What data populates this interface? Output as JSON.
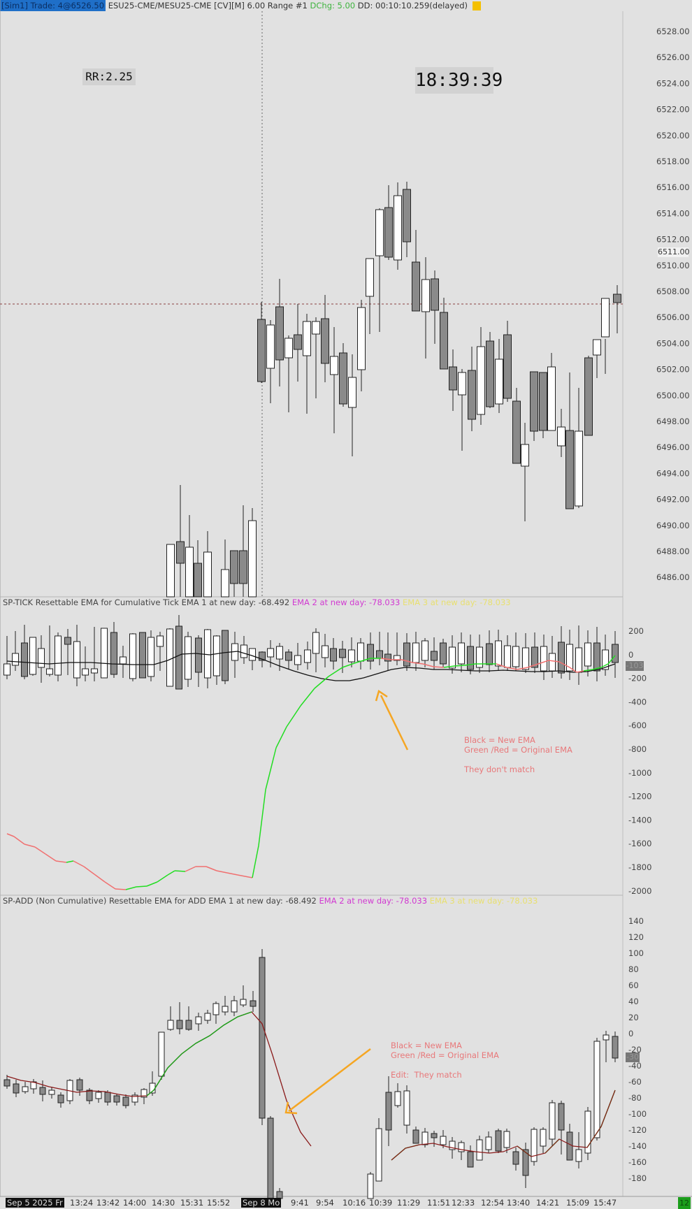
{
  "topbar": {
    "sim": "[Sim1] Trade: 4@6526.50",
    "instrument": "ESU25-CME/MESU25-CME [CV][M] 6.00 Range #1",
    "dchg": "DChg: 5.00",
    "dd": "DD: 00:10:10.259(delayed)"
  },
  "rr_box": "RR:2.25",
  "clock": "18:39:39",
  "price_axis": [
    "6528.00",
    "6526.00",
    "6524.00",
    "6522.00",
    "6520.00",
    "6518.00",
    "6516.00",
    "6514.00",
    "6512.00",
    "6510.00",
    "6508.00",
    "6506.00",
    "6504.00",
    "6502.00",
    "6500.00",
    "6498.00",
    "6496.00",
    "6494.00",
    "6492.00",
    "6490.00",
    "6488.00",
    "6486.00"
  ],
  "price_badge": "6511.00",
  "tick_panel": {
    "label": "SP-TICK  Resettable EMA for Cumulative Tick  EMA 1 at new day: -68.492",
    "ema2": "EMA 2 at new day: -78.033",
    "ema3": "EMA 3 at new day: -78.033",
    "axis": [
      "200",
      "0",
      "-200",
      "-400",
      "-600",
      "-800",
      "-1000",
      "-1200",
      "-1400",
      "-1600",
      "-1800",
      "-2000"
    ],
    "badge": "-103",
    "note": "Black = New EMA\nGreen /Red = Original EMA\n\nThey don't match"
  },
  "add_panel": {
    "label": "SP-ADD (Non Cumulative)  Resettable EMA for ADD   EMA 1 at new day: -68.492",
    "ema2": "EMA 2 at new day: -78.033",
    "ema3": "EMA 3 at new day: -78.033",
    "axis": [
      "140",
      "120",
      "100",
      "80",
      "60",
      "40",
      "20",
      "0",
      "-20",
      "-40",
      "-60",
      "-80",
      "-100",
      "-120",
      "-140",
      "-160",
      "-180"
    ],
    "badge": "-30",
    "note": "Black = New EMA\nGreen /Red = Original EMA\n\nEdit:  They match"
  },
  "x_axis": {
    "date1": "Sep 5 2025 Fr",
    "date2": "Sep 8  Mo",
    "labels": [
      "13:24",
      "13:42",
      "14:00",
      "14:30",
      "15:31",
      "15:52",
      "9:41",
      "9:54",
      "10:16",
      "10:39",
      "11:29",
      "11:51",
      "12:33",
      "12:54",
      "13:40",
      "14:21",
      "15:09",
      "15:47"
    ]
  },
  "corner_badge": "12",
  "colors": {
    "background": "#e1e1e1",
    "ema_new": "#111111",
    "ema_up": "#22dd22",
    "ema_down": "#f07070",
    "add_ema": "#8a1a1a",
    "arrow": "#f5a623",
    "note": "#e8787a"
  }
}
